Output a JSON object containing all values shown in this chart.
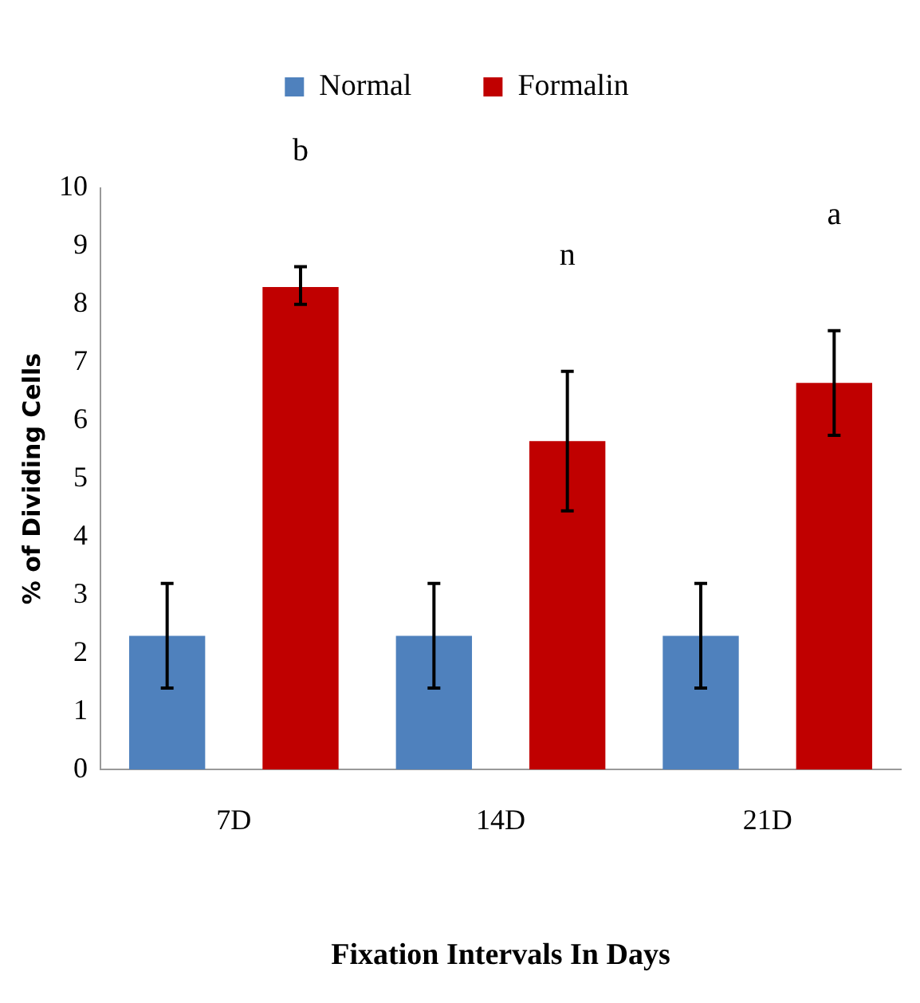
{
  "chart_data": {
    "type": "bar",
    "xlabel": "Fixation Intervals In Days",
    "ylabel": "% of Dividing Cells",
    "categories": [
      "7D",
      "14D",
      "21D"
    ],
    "series": [
      {
        "name": "Normal",
        "color": "#4f81bd",
        "values": [
          2.3,
          2.3,
          2.3
        ],
        "errors": [
          [
            1.4,
            3.2
          ],
          [
            1.4,
            3.2
          ],
          [
            1.4,
            3.2
          ]
        ]
      },
      {
        "name": "Formalin",
        "color": "#c00000",
        "values": [
          8.3,
          5.65,
          6.65
        ],
        "errors": [
          [
            8.0,
            8.65
          ],
          [
            4.45,
            6.85
          ],
          [
            5.75,
            7.55
          ]
        ]
      }
    ],
    "ylim": [
      0,
      10
    ],
    "yticks": [
      0,
      1,
      2,
      3,
      4,
      5,
      6,
      7,
      8,
      9,
      10
    ],
    "grid": false,
    "legend": "top",
    "annotations": [
      "b",
      "n",
      "a"
    ]
  }
}
